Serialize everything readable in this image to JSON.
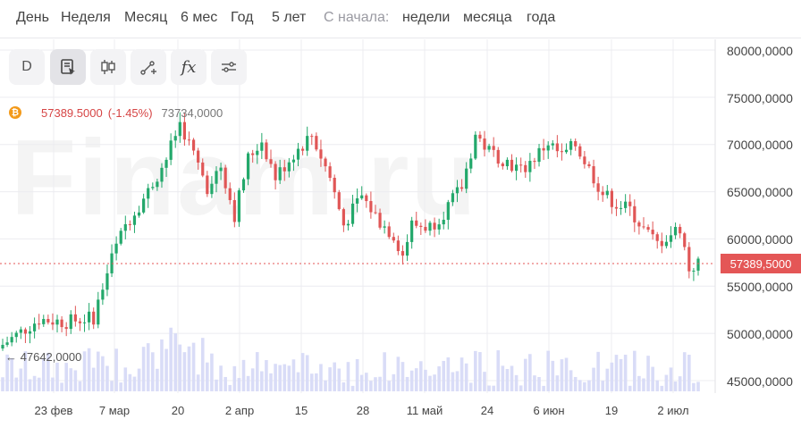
{
  "ranges": [
    {
      "label": "День"
    },
    {
      "label": "Неделя"
    },
    {
      "label": "Месяц"
    },
    {
      "label": "6 мес"
    },
    {
      "label": "Год"
    },
    {
      "label": "5 лет"
    }
  ],
  "aggregation": {
    "label": "С начала:",
    "options": [
      "недели",
      "месяца",
      "года"
    ]
  },
  "toolbar": [
    {
      "name": "interval-button",
      "label": "D"
    },
    {
      "name": "draw-tool-icon"
    },
    {
      "name": "candles-icon"
    },
    {
      "name": "line-tool-icon"
    },
    {
      "name": "indicators-icon",
      "label": "fx"
    },
    {
      "name": "settings-sliders-icon"
    }
  ],
  "legend": {
    "coin_symbol": "₿",
    "price": "57389.5000",
    "change": "(-1.45%)",
    "reference": "73734,0000"
  },
  "watermark": "Finam.ru",
  "colors": {
    "up": "#23a86b",
    "down": "#e05656",
    "volume": "#d9dcf7",
    "grid": "#ececf0",
    "last": "#e45656"
  },
  "chart_data": {
    "type": "candlestick",
    "yticks": [
      "80000,0000",
      "75000,0000",
      "70000,0000",
      "65000,0000",
      "60000,0000",
      "55000,0000",
      "50000,0000",
      "45000,0000"
    ],
    "ylim": [
      45000,
      80000
    ],
    "xticks": [
      "23 фев",
      "7 мар",
      "20",
      "2 апр",
      "15",
      "28",
      "11 май",
      "24",
      "6 июн",
      "19",
      "2 июл"
    ],
    "last_price_label": "57389,5000",
    "last_price": 57389.5,
    "min_label": "47642,0000",
    "min_value": 47642,
    "max_value": 73734,
    "grid": true
  }
}
